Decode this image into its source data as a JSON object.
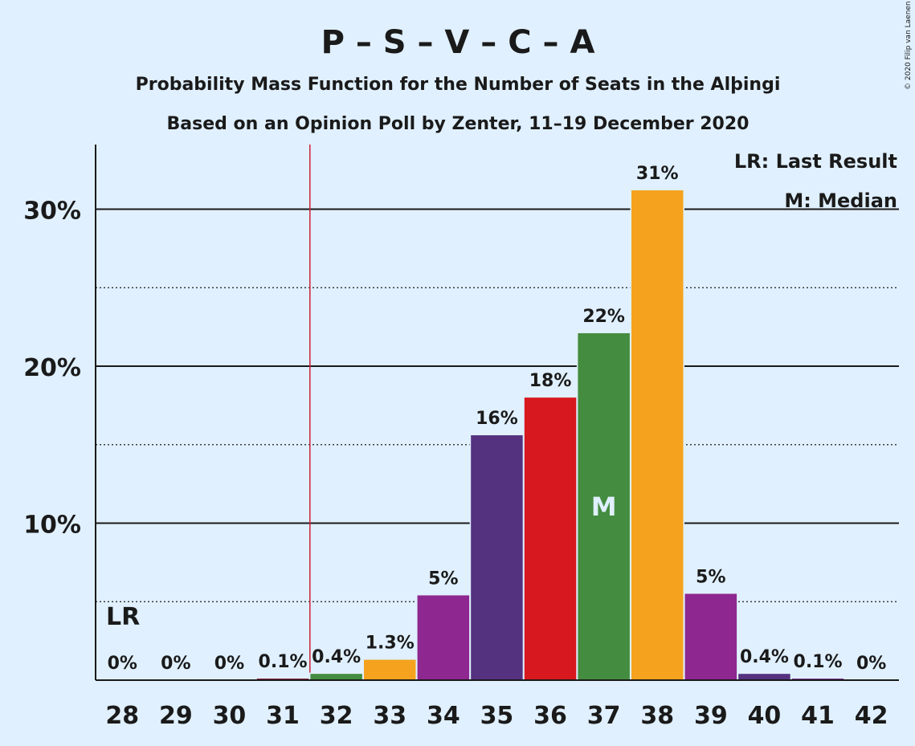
{
  "title": "P – S – V – C – A",
  "subtitle1": "Probability Mass Function for the Number of Seats in the Alþingi",
  "subtitle2": "Based on an Opinion Poll by Zenter, 11–19 December 2020",
  "credit": "© 2020 Filip van Laenen",
  "legend": {
    "lr": "LR: Last Result",
    "m": "M: Median"
  },
  "markers": {
    "last_result_label": "LR",
    "median_label": "M"
  },
  "chart_data": {
    "type": "bar",
    "title": "P – S – V – C – A",
    "categories": [
      "28",
      "29",
      "30",
      "31",
      "32",
      "33",
      "34",
      "35",
      "36",
      "37",
      "38",
      "39",
      "40",
      "41",
      "42"
    ],
    "values": [
      0,
      0,
      0,
      0.1,
      0.4,
      1.3,
      5.4,
      15.6,
      18.0,
      22.1,
      31.2,
      5.5,
      0.4,
      0.1,
      0
    ],
    "labels": [
      "0%",
      "0%",
      "0%",
      "0.1%",
      "0.4%",
      "1.3%",
      "5%",
      "16%",
      "18%",
      "22%",
      "31%",
      "5%",
      "0.4%",
      "0.1%",
      "0%"
    ],
    "colors": [
      "#7b2c8f",
      "#7b2c8f",
      "#7b2c8f",
      "#8b1a3a",
      "#448c3f",
      "#f5a31e",
      "#8e278f",
      "#553280",
      "#d7191f",
      "#448c3f",
      "#f5a31e",
      "#8e278f",
      "#553280",
      "#7b2c8f",
      "#7b2c8f"
    ],
    "ylim": [
      0,
      34
    ],
    "yticks": [
      {
        "value": 10,
        "label": "10%"
      },
      {
        "value": 20,
        "label": "20%"
      },
      {
        "value": 30,
        "label": "30%"
      }
    ],
    "minor_gridlines": [
      5,
      15,
      25
    ],
    "last_result": "31.5",
    "median": "37"
  }
}
